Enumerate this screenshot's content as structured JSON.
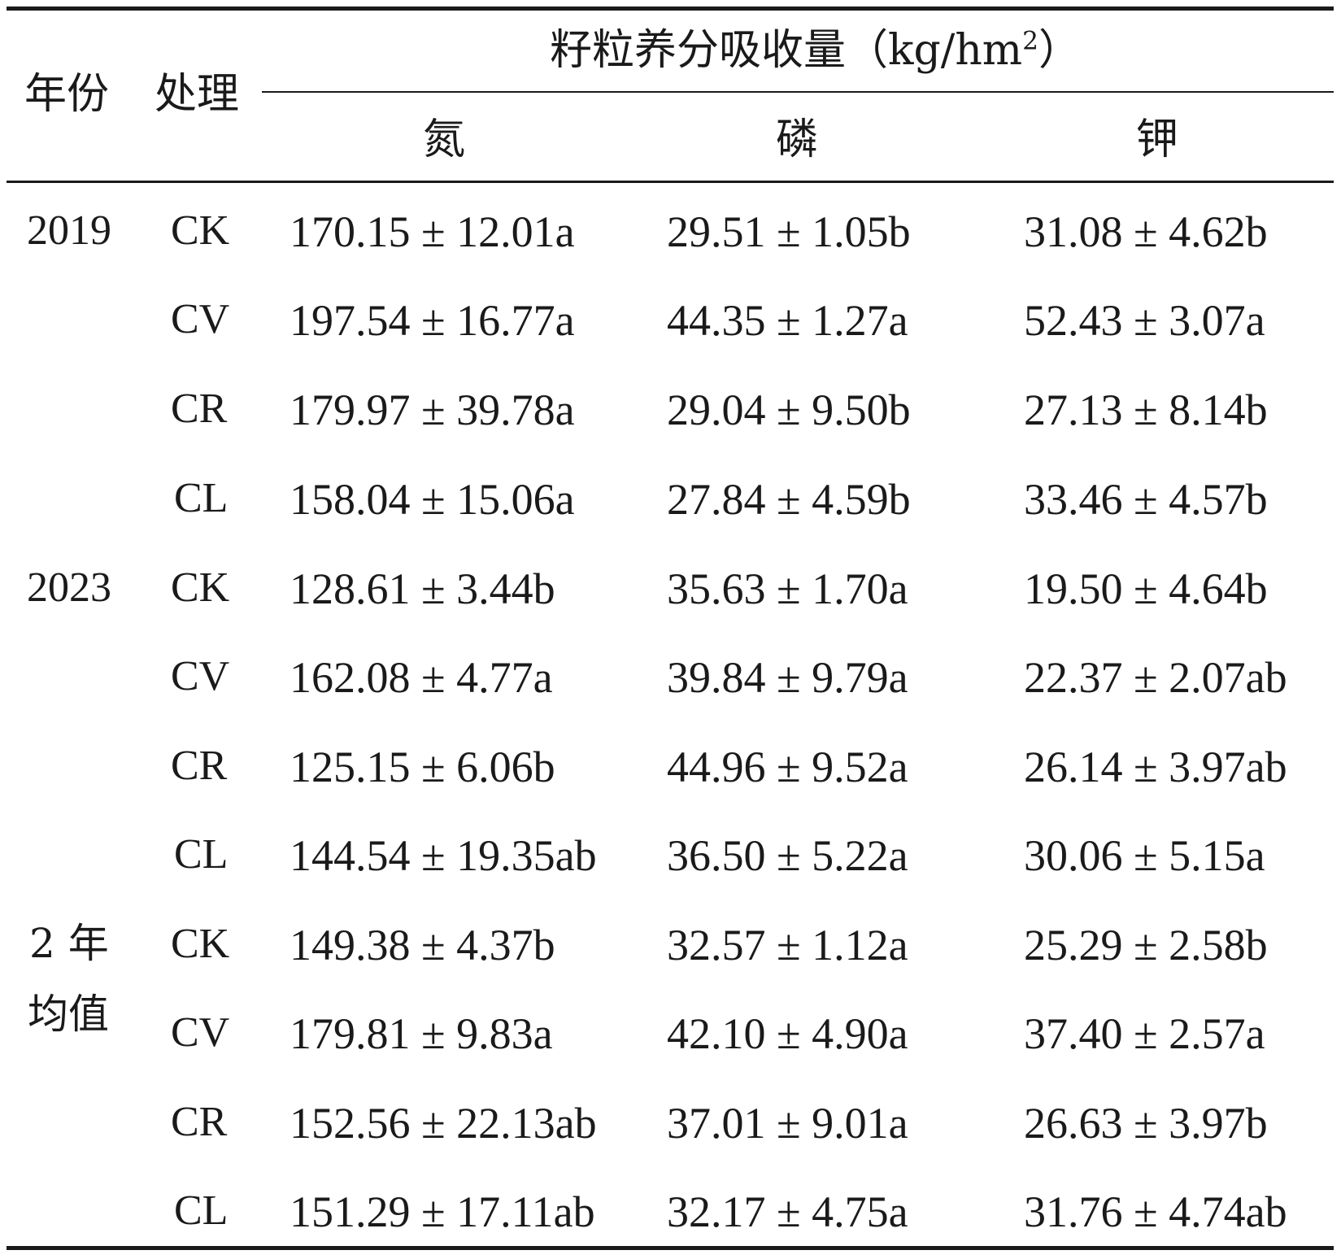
{
  "header": {
    "col_year": "年份",
    "col_treatment": "处理",
    "group_title": "籽粒养分吸收量（kg/hm",
    "group_title_sup": "2",
    "group_title_end": "）",
    "col_n": "氮",
    "col_p": "磷",
    "col_k": "钾"
  },
  "groups": [
    {
      "year": "2019",
      "rows": [
        {
          "treatment": "CK",
          "n": "170.15 ± 12.01a",
          "p": "29.51 ± 1.05b",
          "k": "31.08 ± 4.62b"
        },
        {
          "treatment": "CV",
          "n": "197.54 ± 16.77a",
          "p": "44.35 ± 1.27a",
          "k": "52.43 ± 3.07a"
        },
        {
          "treatment": "CR",
          "n": "179.97 ± 39.78a",
          "p": "29.04 ± 9.50b",
          "k": "27.13 ± 8.14b"
        },
        {
          "treatment": "CL",
          "n": "158.04 ± 15.06a",
          "p": "27.84 ± 4.59b",
          "k": "33.46 ± 4.57b"
        }
      ]
    },
    {
      "year": "2023",
      "rows": [
        {
          "treatment": "CK",
          "n": "128.61 ± 3.44b",
          "p": "35.63 ± 1.70a",
          "k": "19.50 ± 4.64b"
        },
        {
          "treatment": "CV",
          "n": "162.08 ± 4.77a",
          "p": "39.84 ± 9.79a",
          "k": "22.37 ± 2.07ab"
        },
        {
          "treatment": "CR",
          "n": "125.15 ± 6.06b",
          "p": "44.96 ± 9.52a",
          "k": "26.14 ± 3.97ab"
        },
        {
          "treatment": "CL",
          "n": "144.54 ± 19.35ab",
          "p": "36.50 ± 5.22a",
          "k": "30.06 ± 5.15a"
        }
      ]
    },
    {
      "year_line1": "2 年",
      "year_line2": "均值",
      "rows": [
        {
          "treatment": "CK",
          "n": "149.38 ± 4.37b",
          "p": "32.57 ± 1.12a",
          "k": "25.29 ± 2.58b"
        },
        {
          "treatment": "CV",
          "n": "179.81 ± 9.83a",
          "p": "42.10 ± 4.90a",
          "k": "37.40 ± 2.57a"
        },
        {
          "treatment": "CR",
          "n": "152.56 ± 22.13ab",
          "p": "37.01 ± 9.01a",
          "k": "26.63 ± 3.97b"
        },
        {
          "treatment": "CL",
          "n": "151.29 ± 17.11ab",
          "p": "32.17 ± 4.75a",
          "k": "31.76 ± 4.74ab"
        }
      ]
    }
  ]
}
